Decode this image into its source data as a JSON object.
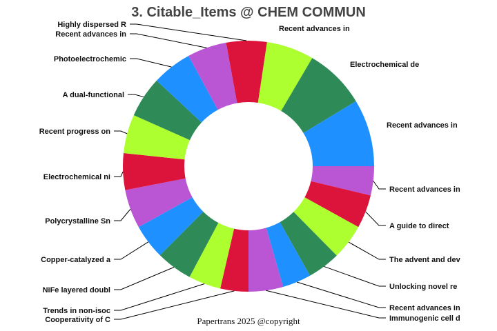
{
  "chart_data": {
    "type": "pie",
    "hole": true,
    "title": "3. Citable_Items @ CHEM COMMUN",
    "footer": "Papertrans 2025 @copyright",
    "colors": [
      "#DC143C",
      "#ADFF2F",
      "#2E8B57",
      "#1E90FF",
      "#BA55D3"
    ],
    "slices": [
      {
        "label": "Highly dispersed R",
        "value": 18.8
      },
      {
        "label": "Recent advances in",
        "value": 22
      },
      {
        "label": "Electrochemical de",
        "value": 28.3
      },
      {
        "label": "Recent advances in",
        "value": 31.2
      },
      {
        "label": "Recent advances in",
        "value": 13.5
      },
      {
        "label": "A guide to direct",
        "value": 15.5
      },
      {
        "label": "The advent and dev",
        "value": 16.4
      },
      {
        "label": "Unlocking novel re",
        "value": 15.3
      },
      {
        "label": "Recent advances in",
        "value": 13.3
      },
      {
        "label": "Immunogenic cell d",
        "value": 16
      },
      {
        "label": "Cooperativity of C",
        "value": 13
      },
      {
        "label": "Trends in non-isoc",
        "value": 15
      },
      {
        "label": "NiFe layered doubl",
        "value": 16.8
      },
      {
        "label": "Copper-catalyzed a",
        "value": 16.2
      },
      {
        "label": "Polycrystalline Sn",
        "value": 18
      },
      {
        "label": "Electrochemical ni",
        "value": 17
      },
      {
        "label": "Recent progress on",
        "value": 18
      },
      {
        "label": "A dual-functional",
        "value": 19
      },
      {
        "label": "Photoelectrochemic",
        "value": 18.5
      },
      {
        "label": "Recent advances in",
        "value": 18.2
      }
    ]
  }
}
